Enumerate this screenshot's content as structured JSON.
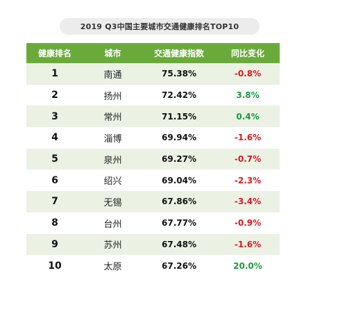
{
  "chart_data": {
    "type": "table",
    "title": "2019 Q3中国主要城市交通健康排名TOP10",
    "columns": [
      "健康排名",
      "城市",
      "交通健康指数",
      "同比变化"
    ],
    "rows": [
      {
        "rank": "1",
        "city": "南通",
        "index": "75.38%",
        "change": "-0.8%",
        "change_value": -0.8
      },
      {
        "rank": "2",
        "city": "扬州",
        "index": "72.42%",
        "change": "3.8%",
        "change_value": 3.8
      },
      {
        "rank": "3",
        "city": "常州",
        "index": "71.15%",
        "change": "0.4%",
        "change_value": 0.4
      },
      {
        "rank": "4",
        "city": "淄博",
        "index": "69.94%",
        "change": "-1.6%",
        "change_value": -1.6
      },
      {
        "rank": "5",
        "city": "泉州",
        "index": "69.27%",
        "change": "-0.7%",
        "change_value": -0.7
      },
      {
        "rank": "6",
        "city": "绍兴",
        "index": "69.04%",
        "change": "-2.3%",
        "change_value": -2.3
      },
      {
        "rank": "7",
        "city": "无锡",
        "index": "67.86%",
        "change": "-3.4%",
        "change_value": -3.4
      },
      {
        "rank": "8",
        "city": "台州",
        "index": "67.77%",
        "change": "-0.9%",
        "change_value": -0.9
      },
      {
        "rank": "9",
        "city": "苏州",
        "index": "67.48%",
        "change": "-1.6%",
        "change_value": -1.6
      },
      {
        "rank": "10",
        "city": "太原",
        "index": "67.26%",
        "change": "20.0%",
        "change_value": 20.0
      }
    ]
  },
  "colors": {
    "header_bg": "#6aaa3b",
    "stripe_bg": "#ebf2e4",
    "negative": "#e0141e",
    "positive": "#1a9a3c"
  }
}
